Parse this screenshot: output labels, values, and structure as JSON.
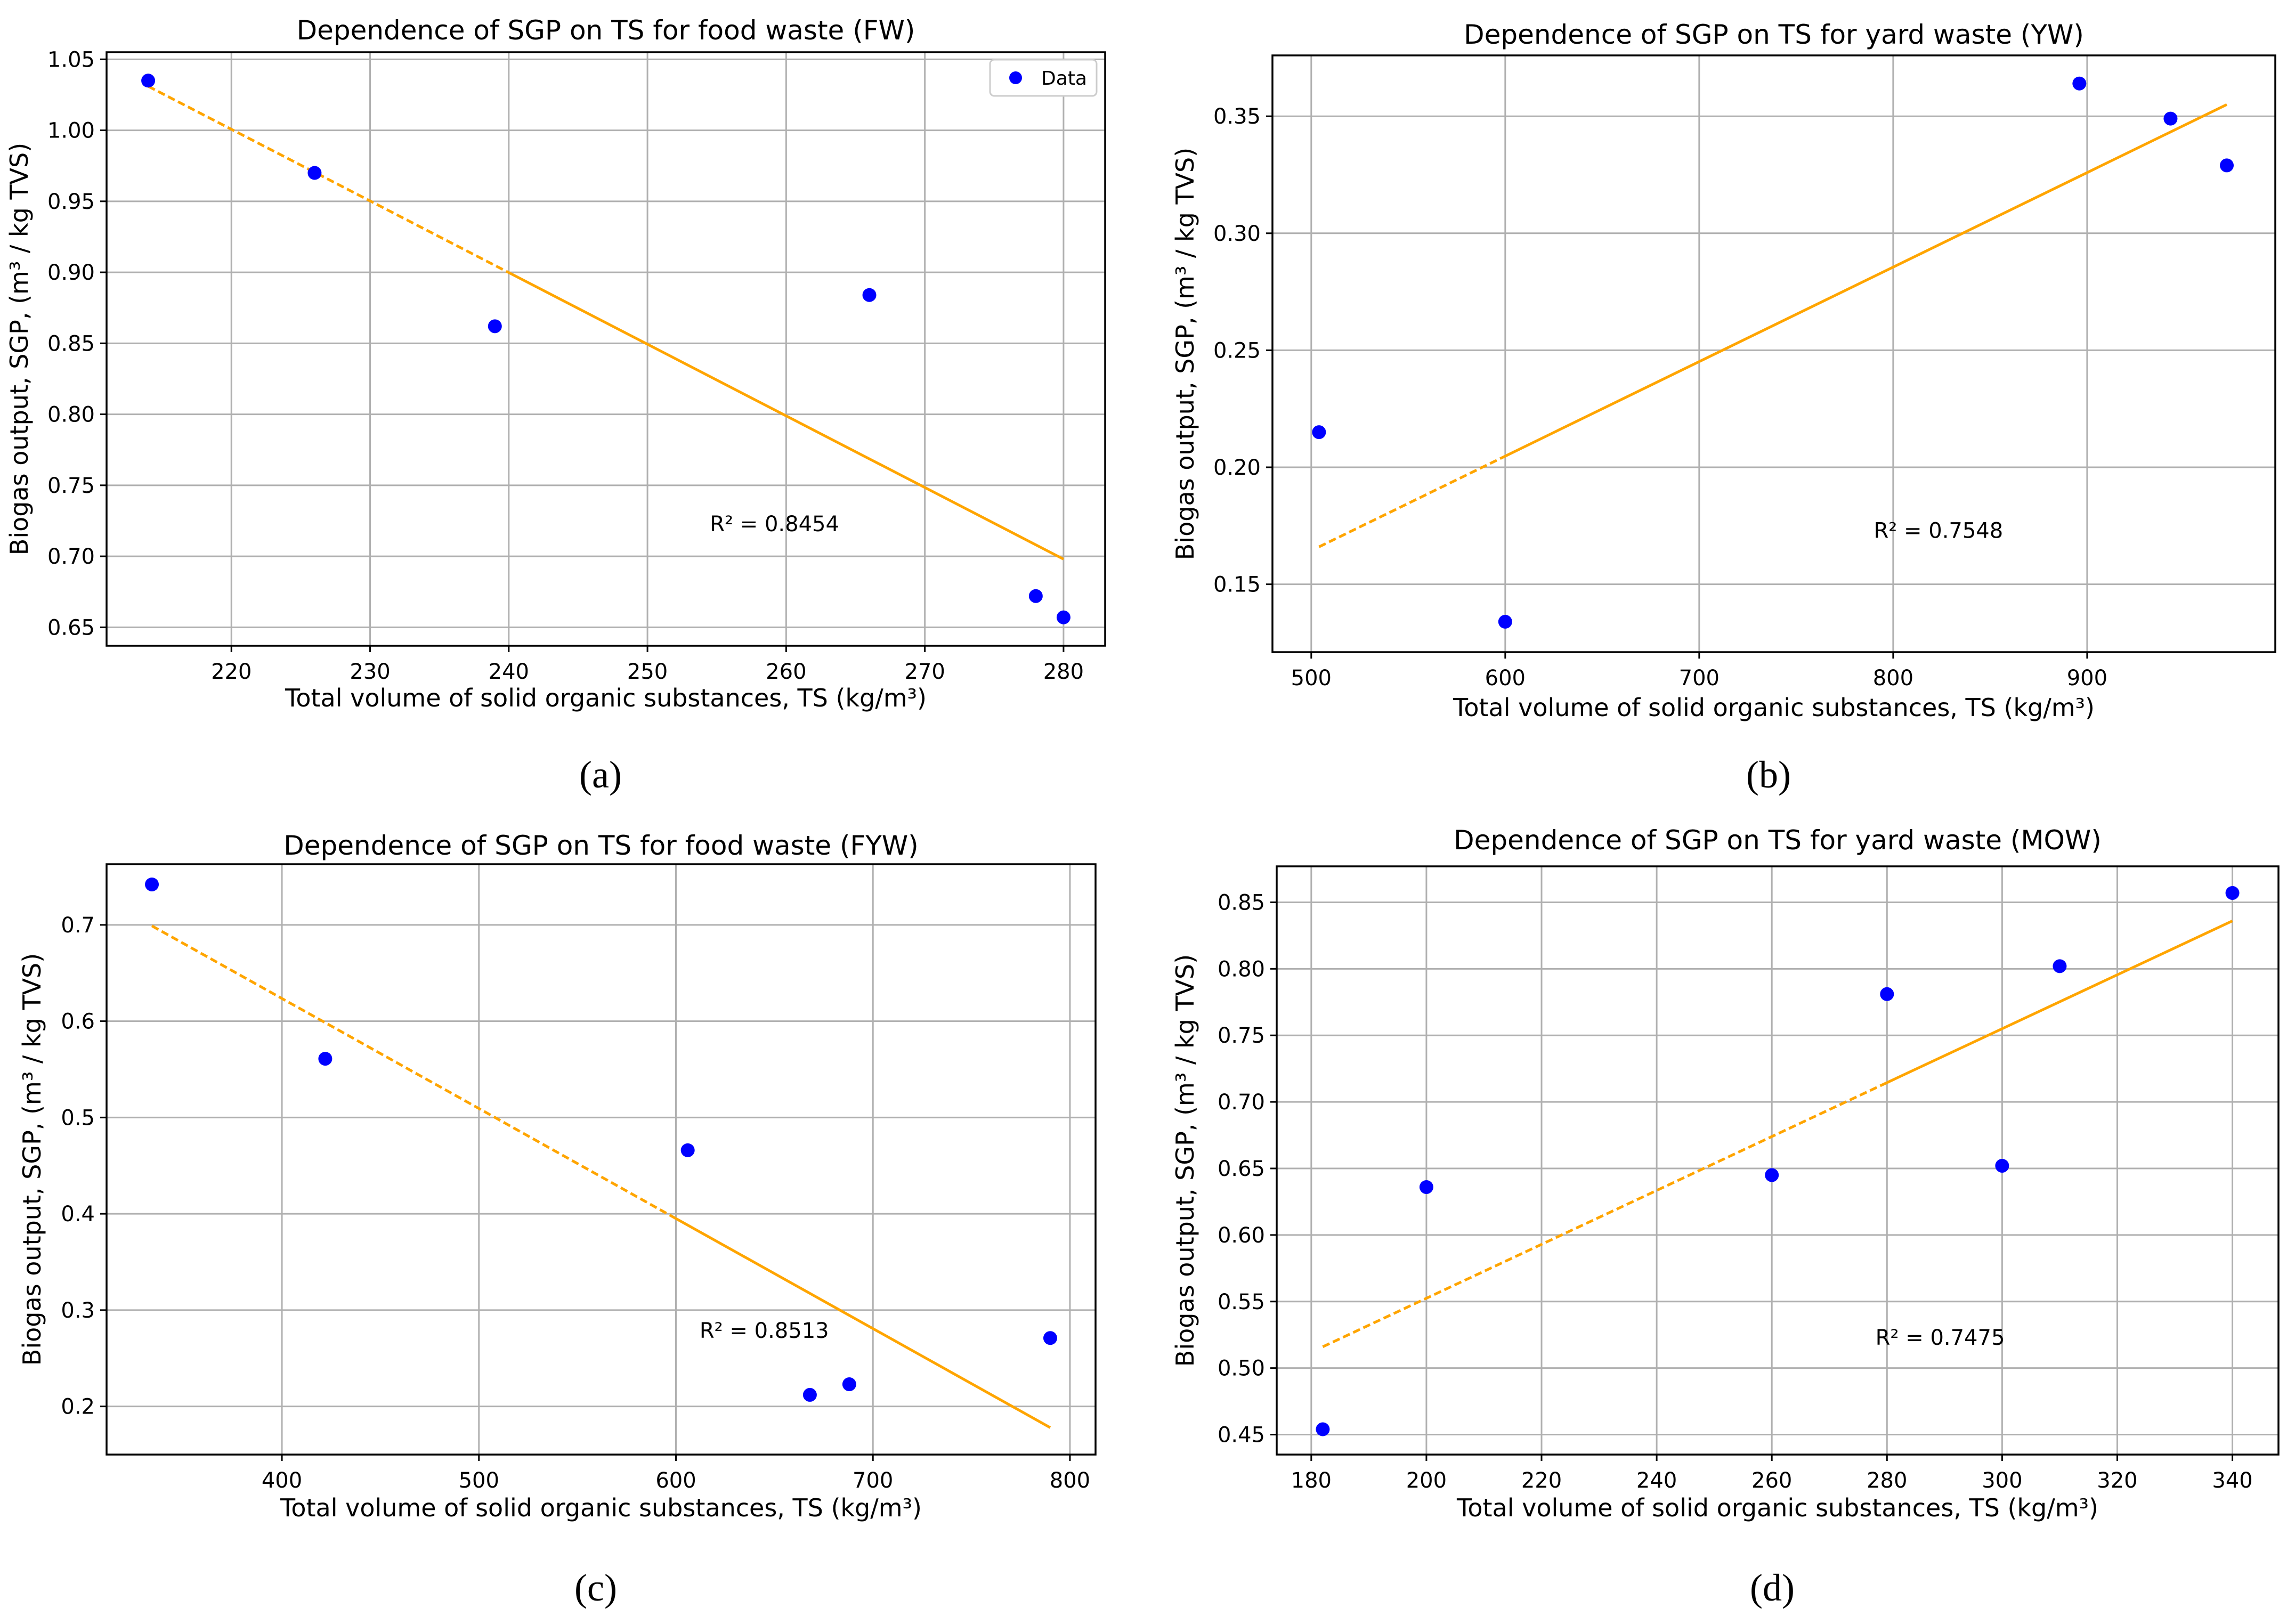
{
  "colors": {
    "points": "#0000ff",
    "fit": "#ffa500"
  },
  "chart_data": [
    {
      "type": "scatter",
      "panel_label": "(a)",
      "title": "Dependence of SGP on TS for food waste (FW)",
      "xlabel": "Total volume of solid organic substances, TS (kg/m³)",
      "ylabel": "Biogas output, SGP, (m³ / kg TVS)",
      "xlim": [
        211,
        283
      ],
      "ylim": [
        0.637,
        1.055
      ],
      "xticks": [
        220,
        230,
        240,
        250,
        260,
        270,
        280
      ],
      "xtick_labels": [
        "220",
        "230",
        "240",
        "250",
        "260",
        "270",
        "280"
      ],
      "yticks": [
        0.65,
        0.7,
        0.75,
        0.8,
        0.85,
        0.9,
        0.95,
        1.0,
        1.05
      ],
      "ytick_labels": [
        "0.65",
        "0.70",
        "0.75",
        "0.80",
        "0.85",
        "0.90",
        "0.95",
        "1.00",
        "1.05"
      ],
      "grid": true,
      "legend": {
        "label": "Data",
        "position": "top-right"
      },
      "points": {
        "x": [
          214,
          226,
          239,
          266,
          278,
          280
        ],
        "y": [
          1.035,
          0.97,
          0.862,
          0.884,
          0.672,
          0.657
        ]
      },
      "fit": {
        "x_start": 214,
        "y_start": 1.031,
        "x_end": 280,
        "y_end": 0.698,
        "dashed_until": 240,
        "annotation": "R² = 0.8454",
        "annotation_at": [
          254.5,
          0.723
        ]
      }
    },
    {
      "type": "scatter",
      "panel_label": "(b)",
      "title": "Dependence of SGP on TS for yard waste (YW)",
      "xlabel": "Total volume of solid organic substances, TS (kg/m³)",
      "ylabel": "Biogas output, SGP, (m³ / kg TVS)",
      "xlim": [
        480,
        997
      ],
      "ylim": [
        0.121,
        0.376
      ],
      "xticks": [
        500,
        600,
        700,
        800,
        900
      ],
      "xtick_labels": [
        "500",
        "600",
        "700",
        "800",
        "900"
      ],
      "yticks": [
        0.15,
        0.2,
        0.25,
        0.3,
        0.35
      ],
      "ytick_labels": [
        "0.15",
        "0.20",
        "0.25",
        "0.30",
        "0.35"
      ],
      "grid": true,
      "points": {
        "x": [
          504,
          600,
          896,
          943,
          972
        ],
        "y": [
          0.215,
          0.134,
          0.364,
          0.349,
          0.329
        ]
      },
      "fit": {
        "x_start": 504,
        "y_start": 0.166,
        "x_end": 972,
        "y_end": 0.355,
        "dashed_until": 600,
        "annotation": "R² = 0.7548",
        "annotation_at": [
          790,
          0.173
        ]
      }
    },
    {
      "type": "scatter",
      "panel_label": "(c)",
      "title": "Dependence of SGP on TS for food waste (FYW)",
      "xlabel": "Total volume of solid organic substances, TS (kg/m³)",
      "ylabel": "Biogas output, SGP, (m³ / kg TVS)",
      "xlim": [
        311,
        813
      ],
      "ylim": [
        0.15,
        0.763
      ],
      "xticks": [
        400,
        500,
        600,
        700,
        800
      ],
      "xtick_labels": [
        "400",
        "500",
        "600",
        "700",
        "800"
      ],
      "yticks": [
        0.2,
        0.3,
        0.4,
        0.5,
        0.6,
        0.7
      ],
      "ytick_labels": [
        "0.2",
        "0.3",
        "0.4",
        "0.5",
        "0.6",
        "0.7"
      ],
      "grid": true,
      "points": {
        "x": [
          334,
          422,
          606,
          668,
          688,
          790
        ],
        "y": [
          0.742,
          0.561,
          0.466,
          0.212,
          0.223,
          0.271
        ]
      },
      "fit": {
        "x_start": 334,
        "y_start": 0.699,
        "x_end": 790,
        "y_end": 0.178,
        "dashed_until": 600,
        "annotation": "R² = 0.8513",
        "annotation_at": [
          612,
          0.279
        ]
      }
    },
    {
      "type": "scatter",
      "panel_label": "(d)",
      "title": "Dependence of SGP on TS for yard waste (MOW)",
      "xlabel": "Total volume of solid organic substances, TS (kg/m³)",
      "ylabel": "Biogas output, SGP, (m³ / kg TVS)",
      "xlim": [
        174,
        348
      ],
      "ylim": [
        0.435,
        0.877
      ],
      "xticks": [
        180,
        200,
        220,
        240,
        260,
        280,
        300,
        320,
        340
      ],
      "xtick_labels": [
        "180",
        "200",
        "220",
        "240",
        "260",
        "280",
        "300",
        "320",
        "340"
      ],
      "yticks": [
        0.45,
        0.5,
        0.55,
        0.6,
        0.65,
        0.7,
        0.75,
        0.8,
        0.85
      ],
      "ytick_labels": [
        "0.45",
        "0.50",
        "0.55",
        "0.60",
        "0.65",
        "0.70",
        "0.75",
        "0.80",
        "0.85"
      ],
      "grid": true,
      "points": {
        "x": [
          182,
          200,
          260,
          280,
          300,
          310,
          340
        ],
        "y": [
          0.454,
          0.636,
          0.645,
          0.781,
          0.652,
          0.802,
          0.857
        ]
      },
      "fit": {
        "x_start": 182,
        "y_start": 0.516,
        "x_end": 340,
        "y_end": 0.836,
        "dashed_until": 280,
        "annotation": "R² = 0.7475",
        "annotation_at": [
          278,
          0.523
        ]
      }
    }
  ]
}
